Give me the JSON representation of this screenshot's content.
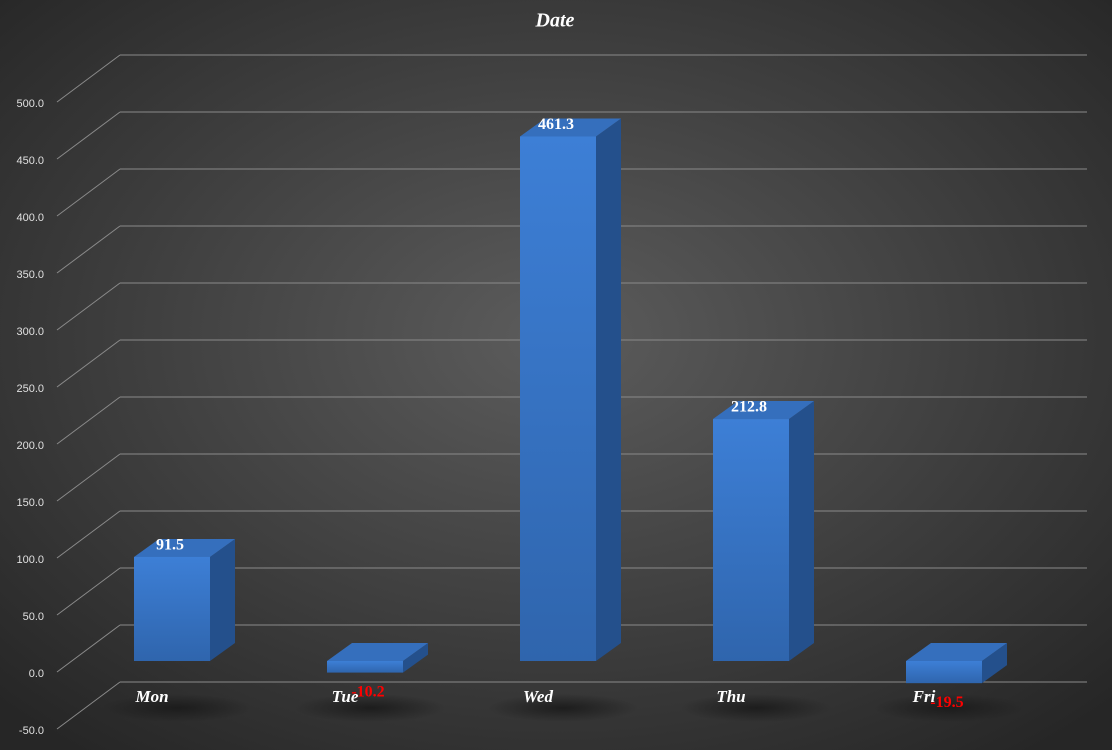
{
  "chart_data": {
    "type": "bar3d",
    "title": "Date",
    "categories": [
      "Mon",
      "Tue",
      "Wed",
      "Thu",
      "Fri"
    ],
    "values": [
      91.5,
      -10.2,
      461.3,
      212.8,
      -19.5
    ],
    "color": "#3a78c9",
    "negative_label_color": "#ff0000",
    "ylim": [
      -50,
      500
    ],
    "yticks": [
      {
        "value": -50,
        "label": "-50.0"
      },
      {
        "value": 0,
        "label": "0.0"
      },
      {
        "value": 50,
        "label": "50.0"
      },
      {
        "value": 100,
        "label": "100.0"
      },
      {
        "value": 150,
        "label": "150.0"
      },
      {
        "value": 200,
        "label": "200.0"
      },
      {
        "value": 250,
        "label": "250.0"
      },
      {
        "value": 300,
        "label": "300.0"
      },
      {
        "value": 350,
        "label": "350.0"
      },
      {
        "value": 400,
        "label": "400.0"
      },
      {
        "value": 450,
        "label": "450.0"
      },
      {
        "value": 500,
        "label": "500.0"
      }
    ],
    "grid": true
  }
}
